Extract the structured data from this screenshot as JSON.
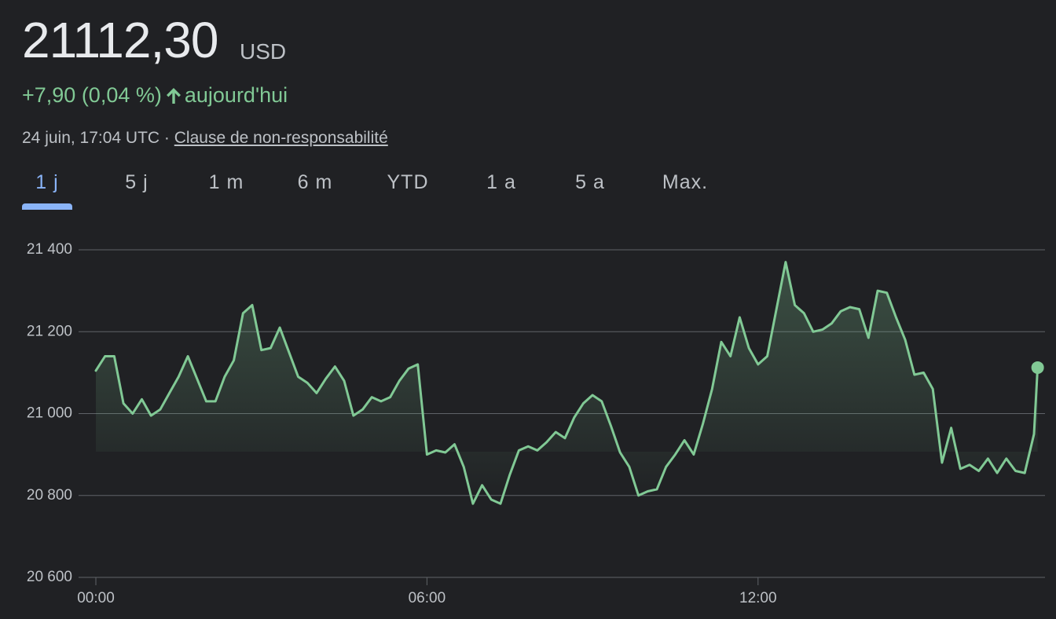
{
  "header": {
    "price": "21112,30",
    "currency": "USD",
    "change": "+7,90 (0,04 %)",
    "period": "aujourd'hui",
    "timestamp": "24 juin, 17:04 UTC · ",
    "disclaimer": "Clause de non-responsabilité"
  },
  "tabs": {
    "items": [
      "1 j",
      "5 j",
      "1 m",
      "6 m",
      "YTD",
      "1 a",
      "5 a",
      "Max."
    ],
    "selected": "1 j"
  },
  "chart_data": {
    "type": "line",
    "color": "#81c995",
    "grid": true,
    "x": [
      "00:00",
      "00:10",
      "00:20",
      "00:30",
      "00:40",
      "00:50",
      "01:00",
      "01:10",
      "01:20",
      "01:30",
      "01:40",
      "01:50",
      "02:00",
      "02:10",
      "02:20",
      "02:30",
      "02:40",
      "02:50",
      "03:00",
      "03:10",
      "03:20",
      "03:30",
      "03:40",
      "03:50",
      "04:00",
      "04:10",
      "04:20",
      "04:30",
      "04:40",
      "04:50",
      "05:00",
      "05:10",
      "05:20",
      "05:30",
      "05:40",
      "05:50",
      "06:00",
      "06:10",
      "06:20",
      "06:30",
      "06:40",
      "06:50",
      "07:00",
      "07:10",
      "07:20",
      "07:30",
      "07:40",
      "07:50",
      "08:00",
      "08:10",
      "08:20",
      "08:30",
      "08:40",
      "08:50",
      "09:00",
      "09:10",
      "09:20",
      "09:30",
      "09:40",
      "09:50",
      "10:00",
      "10:10",
      "10:20",
      "10:30",
      "10:40",
      "10:50",
      "11:00",
      "11:10",
      "11:20",
      "11:30",
      "11:40",
      "11:50",
      "12:00",
      "12:10",
      "12:20",
      "12:30",
      "12:40",
      "12:50",
      "13:00",
      "13:10",
      "13:20",
      "13:30",
      "13:40",
      "13:50",
      "14:00",
      "14:10",
      "14:20",
      "14:30",
      "14:40",
      "14:50",
      "15:00",
      "15:10",
      "15:20",
      "15:30",
      "15:40",
      "15:50",
      "16:00",
      "16:10",
      "16:20",
      "16:30",
      "16:40",
      "16:50",
      "17:00",
      "17:04"
    ],
    "values": [
      21105,
      21140,
      21140,
      21025,
      21000,
      21035,
      20995,
      21010,
      21050,
      21090,
      21140,
      21085,
      21030,
      21030,
      21090,
      21130,
      21245,
      21265,
      21155,
      21160,
      21210,
      21150,
      21090,
      21075,
      21050,
      21085,
      21115,
      21080,
      20995,
      21010,
      21040,
      21030,
      21040,
      21080,
      21110,
      21120,
      20900,
      20910,
      20905,
      20925,
      20870,
      20780,
      20825,
      20790,
      20780,
      20850,
      20910,
      20920,
      20910,
      20930,
      20955,
      20940,
      20990,
      21025,
      21045,
      21030,
      20970,
      20905,
      20870,
      20800,
      20810,
      20815,
      20870,
      20900,
      20935,
      20900,
      20975,
      21060,
      21175,
      21140,
      21235,
      21160,
      21120,
      21140,
      21255,
      21370,
      21265,
      21245,
      21200,
      21205,
      21220,
      21250,
      21260,
      21255,
      21185,
      21300,
      21295,
      21235,
      21180,
      21095,
      21100,
      21060,
      20880,
      20965,
      20865,
      20875,
      20860,
      20890,
      20855,
      20890,
      20860,
      20855,
      20950,
      21112.3
    ],
    "xlim": [
      "00:00",
      "17:12"
    ],
    "xticks": [
      "00:00",
      "06:00",
      "12:00"
    ],
    "ylim": [
      20600,
      21400
    ],
    "yticks": [
      {
        "value": 20600,
        "label": "20 600"
      },
      {
        "value": 20800,
        "label": "20 800"
      },
      {
        "value": 21000,
        "label": "21 000"
      },
      {
        "value": 21200,
        "label": "21 200"
      },
      {
        "value": 21400,
        "label": "21 400"
      }
    ]
  }
}
